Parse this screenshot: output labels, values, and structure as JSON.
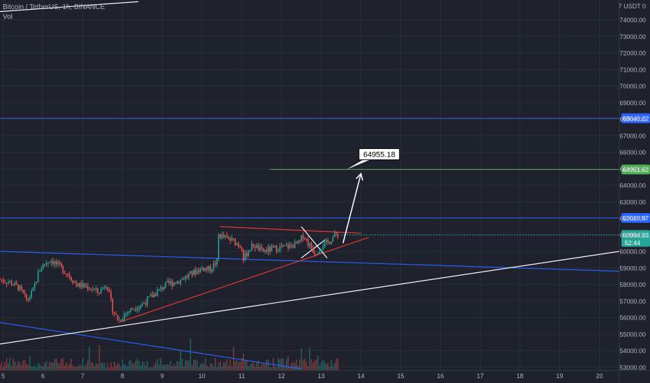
{
  "header": {
    "symbol_line": "Bitcoin / TetherUS, 1h, BINANCE",
    "volume_label": "Vol"
  },
  "colors": {
    "background": "#1f222c",
    "up": "#26a69a",
    "down": "#ef5350",
    "blue_level": "#2962ff",
    "green_level": "#4caf50",
    "annotation_line": "#ffffff",
    "triangle": "#e53935"
  },
  "chart_data": {
    "type": "candlestick",
    "symbol": "Bitcoin / TetherUS",
    "interval": "1h",
    "exchange": "BINANCE",
    "currency_label": "USDT",
    "y_ticks": [
      53000,
      54000,
      55000,
      56000,
      57000,
      58000,
      59000,
      60000,
      61000,
      62000,
      63000,
      64000,
      65000,
      66000,
      67000,
      68000,
      69000,
      70000,
      71000,
      72000,
      73000,
      74000
    ],
    "ylim": [
      52800,
      75200
    ],
    "x_tick_labels": [
      "5",
      "6",
      "7",
      "8",
      "9",
      "10",
      "11",
      "12",
      "13",
      "14",
      "15",
      "16",
      "17",
      "18",
      "19",
      "20"
    ],
    "x_tick_days": [
      5,
      6,
      7,
      8,
      9,
      10,
      11,
      12,
      13,
      14,
      15,
      16,
      17,
      18,
      19,
      20
    ],
    "xlim": [
      4.92,
      20.5
    ],
    "price_path": [
      [
        4.92,
        58300
      ],
      [
        5.2,
        58100
      ],
      [
        5.4,
        57800
      ],
      [
        5.6,
        57000
      ],
      [
        5.75,
        57600
      ],
      [
        5.9,
        58800
      ],
      [
        6.0,
        59200
      ],
      [
        6.2,
        59500
      ],
      [
        6.4,
        59100
      ],
      [
        6.6,
        58700
      ],
      [
        6.85,
        58000
      ],
      [
        7.0,
        57900
      ],
      [
        7.2,
        57800
      ],
      [
        7.4,
        57500
      ],
      [
        7.6,
        58100
      ],
      [
        7.75,
        56500
      ],
      [
        7.9,
        55800
      ],
      [
        8.1,
        56300
      ],
      [
        8.3,
        56600
      ],
      [
        8.5,
        56800
      ],
      [
        8.7,
        57200
      ],
      [
        8.9,
        57600
      ],
      [
        9.1,
        58000
      ],
      [
        9.4,
        58200
      ],
      [
        9.7,
        58600
      ],
      [
        10.0,
        59000
      ],
      [
        10.2,
        58900
      ],
      [
        10.38,
        59400
      ],
      [
        10.42,
        61000
      ],
      [
        10.6,
        60800
      ],
      [
        10.8,
        60600
      ],
      [
        11.0,
        60300
      ],
      [
        11.05,
        59500
      ],
      [
        11.15,
        60000
      ],
      [
        11.3,
        60400
      ],
      [
        11.5,
        60000
      ],
      [
        11.7,
        60100
      ],
      [
        11.9,
        60200
      ],
      [
        12.2,
        60300
      ],
      [
        12.45,
        60500
      ],
      [
        12.55,
        61000
      ],
      [
        12.7,
        60400
      ],
      [
        12.85,
        59900
      ],
      [
        13.0,
        60300
      ],
      [
        13.2,
        60600
      ],
      [
        13.35,
        61000
      ],
      [
        13.45,
        61100
      ]
    ],
    "volume_ylim": [
      0,
      1
    ],
    "horizontal_levels": [
      {
        "price": 68049.22,
        "label": "68049.22",
        "color": "blue"
      },
      {
        "price": 64951.62,
        "label": "64951.62",
        "color": "green"
      },
      {
        "price": 62019.97,
        "label": "62019.97",
        "color": "blue"
      }
    ],
    "last_price": {
      "price": 60994.33,
      "label": "60994.33",
      "countdown": "52:44"
    },
    "target_label": "64955.18",
    "trendlines": [
      {
        "name": "upper-channel",
        "color": "blue",
        "points": [
          [
            4.92,
            60000
          ],
          [
            20.5,
            58800
          ]
        ]
      },
      {
        "name": "lower-channel",
        "color": "blue",
        "points": [
          [
            4.92,
            55700
          ],
          [
            12.5,
            52900
          ]
        ]
      },
      {
        "name": "long-support",
        "color": "white",
        "points": [
          [
            4.92,
            54400
          ],
          [
            20.5,
            60000
          ]
        ]
      },
      {
        "name": "steep-line",
        "color": "white",
        "points": [
          [
            4.92,
            74500
          ],
          [
            8.4,
            75100
          ]
        ]
      },
      {
        "name": "triangle-top",
        "color": "red",
        "points": [
          [
            10.45,
            61500
          ],
          [
            14.0,
            61100
          ]
        ]
      },
      {
        "name": "triangle-bottom",
        "color": "red",
        "points": [
          [
            7.9,
            55700
          ],
          [
            14.2,
            60850
          ]
        ]
      },
      {
        "name": "pattern-a",
        "color": "white",
        "points": [
          [
            12.5,
            61500
          ],
          [
            13.15,
            59600
          ]
        ]
      },
      {
        "name": "pattern-b",
        "color": "white",
        "points": [
          [
            12.5,
            59600
          ],
          [
            13.1,
            60700
          ]
        ]
      }
    ],
    "target_projection": {
      "from": [
        13.55,
        60500
      ],
      "to": [
        14.0,
        64700
      ]
    }
  }
}
